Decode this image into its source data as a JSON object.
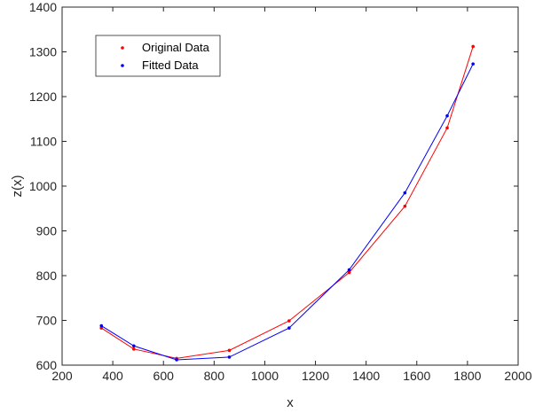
{
  "chart_data": {
    "type": "line",
    "xlabel": "x",
    "ylabel": "z(x)",
    "xlim": [
      200,
      2000
    ],
    "ylim": [
      600,
      1400
    ],
    "xticks": [
      200,
      400,
      600,
      800,
      1000,
      1200,
      1400,
      1600,
      1800,
      2000
    ],
    "yticks": [
      600,
      700,
      800,
      900,
      1000,
      1100,
      1200,
      1300,
      1400
    ],
    "grid": false,
    "legend_position": "top-left",
    "series": [
      {
        "name": "Original Data",
        "color": "#ff0000",
        "x": [
          355,
          483,
          652,
          860,
          1096,
          1333,
          1553,
          1720,
          1822
        ],
        "y": [
          683,
          636,
          615,
          633,
          699,
          807,
          955,
          1130,
          1312
        ]
      },
      {
        "name": "Fitted Data",
        "color": "#0000ff",
        "x": [
          355,
          483,
          652,
          860,
          1096,
          1333,
          1553,
          1720,
          1822
        ],
        "y": [
          688,
          643,
          612,
          618,
          683,
          813,
          985,
          1157,
          1273
        ]
      }
    ]
  }
}
